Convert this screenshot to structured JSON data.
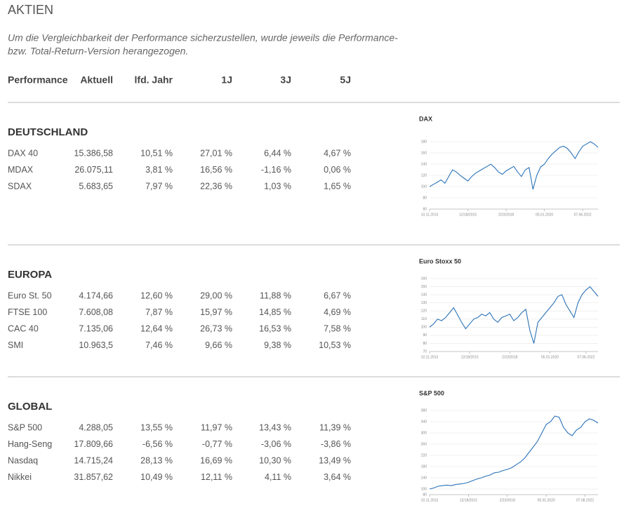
{
  "header": {
    "title": "AKTIEN",
    "note": [
      "Um die Vergleichbarkeit der Performance sicherzustellen, wurde jeweils die Performance-",
      "bzw. Total-Return-Version herangezogen."
    ]
  },
  "table": {
    "columns": [
      "Performance",
      "Aktuell",
      "lfd. Jahr",
      "1J",
      "3J",
      "5J"
    ],
    "sections": [
      {
        "title": "DEUTSCHLAND",
        "rows": [
          [
            "DAX 40",
            "15.386,58",
            "10,51 %",
            "27,01 %",
            "6,44 %",
            "4,67 %"
          ],
          [
            "MDAX",
            "26.075,11",
            "3,81 %",
            "16,56 %",
            "-1,16 %",
            "0,06 %"
          ],
          [
            "SDAX",
            "5.683,65",
            "7,97 %",
            "22,36 %",
            "1,03 %",
            "1,65 %"
          ]
        ],
        "chart": {
          "type": "line",
          "title": "DAX",
          "color": "#2b73b8",
          "values": [
            100,
            104,
            108,
            112,
            106,
            118,
            130,
            126,
            120,
            115,
            110,
            118,
            124,
            128,
            132,
            136,
            140,
            134,
            126,
            122,
            128,
            132,
            136,
            126,
            118,
            130,
            134,
            95,
            120,
            135,
            140,
            150,
            158,
            164,
            170,
            172,
            168,
            160,
            150,
            162,
            172,
            176,
            180,
            176,
            170
          ],
          "ylim": [
            60,
            190
          ],
          "yticks": [
            60,
            80,
            100,
            120,
            140,
            160,
            180
          ],
          "xticks": [
            {
              "value": 0,
              "label": "10.11.2013"
            },
            {
              "value": 10,
              "label": "12/18/2015"
            },
            {
              "value": 20,
              "label": "2/23/2018"
            },
            {
              "value": 30,
              "label": "05.01.2020"
            },
            {
              "value": 40,
              "label": "07.06.2022"
            }
          ],
          "grid": true
        }
      },
      {
        "title": "EUROPA",
        "rows": [
          [
            "Euro St. 50",
            "4.174,66",
            "12,60 %",
            "29,00 %",
            "11,88 %",
            "6,67 %"
          ],
          [
            "FTSE 100",
            "7.608,08",
            "7,87 %",
            "15,97 %",
            "14,85 %",
            "4,69 %"
          ],
          [
            "CAC 40",
            "7.135,06",
            "12,64 %",
            "26,73 %",
            "16,53 %",
            "7,58 %"
          ],
          [
            "SMI",
            "10.963,5",
            "7,46 %",
            "9,66 %",
            "9,38 %",
            "10,53 %"
          ]
        ],
        "chart": {
          "type": "line",
          "title": "Euro Stoxx 50",
          "color": "#2b73b8",
          "values": [
            100,
            104,
            110,
            108,
            112,
            118,
            124,
            115,
            106,
            98,
            104,
            110,
            112,
            116,
            114,
            118,
            110,
            106,
            112,
            114,
            116,
            108,
            112,
            118,
            122,
            96,
            80,
            106,
            112,
            118,
            124,
            130,
            138,
            140,
            128,
            120,
            112,
            130,
            140,
            146,
            150,
            144,
            138
          ],
          "ylim": [
            70,
            160
          ],
          "yticks": [
            70,
            80,
            90,
            100,
            110,
            120,
            130,
            140,
            150,
            160
          ],
          "xticks": [
            {
              "value": 0,
              "label": "10.11.2013"
            },
            {
              "value": 10,
              "label": "12/18/2015"
            },
            {
              "value": 20,
              "label": "2/23/2018"
            },
            {
              "value": 30,
              "label": "05.01.2020"
            },
            {
              "value": 39,
              "label": "07.08.2022"
            }
          ],
          "grid": true
        }
      },
      {
        "title": "GLOBAL",
        "rows": [
          [
            "S&P 500",
            "4.288,05",
            "13,55 %",
            "11,97 %",
            "13,43 %",
            "11,39 %"
          ],
          [
            "Hang-Seng",
            "17.809,66",
            "-6,56 %",
            "-0,77 %",
            "-3,06 %",
            "-3,86 %"
          ],
          [
            "Nasdaq",
            "14.715,24",
            "28,13 %",
            "16,69 %",
            "10,30 %",
            "13,49 %"
          ],
          [
            "Nikkei",
            "31.857,62",
            "10,49 %",
            "12,11 %",
            "4,11 %",
            "3,64 %"
          ]
        ],
        "chart": {
          "type": "line",
          "title": "S&P 500",
          "color": "#2b73b8",
          "values": [
            100,
            104,
            110,
            112,
            114,
            112,
            116,
            118,
            120,
            124,
            130,
            136,
            140,
            146,
            150,
            158,
            160,
            166,
            170,
            176,
            186,
            196,
            210,
            230,
            250,
            270,
            300,
            330,
            340,
            360,
            356,
            320,
            300,
            290,
            310,
            320,
            340,
            350,
            345,
            335
          ],
          "ylim": [
            80,
            380
          ],
          "yticks": [
            80,
            100,
            140,
            180,
            220,
            260,
            300,
            340,
            380
          ],
          "xticks": [
            {
              "value": 0,
              "label": "10.11.2013"
            },
            {
              "value": 9,
              "label": "12/18/2015"
            },
            {
              "value": 18,
              "label": "2/23/2018"
            },
            {
              "value": 27,
              "label": "05.01.2020"
            },
            {
              "value": 36,
              "label": "07.08.2022"
            }
          ],
          "grid": true
        }
      }
    ]
  }
}
